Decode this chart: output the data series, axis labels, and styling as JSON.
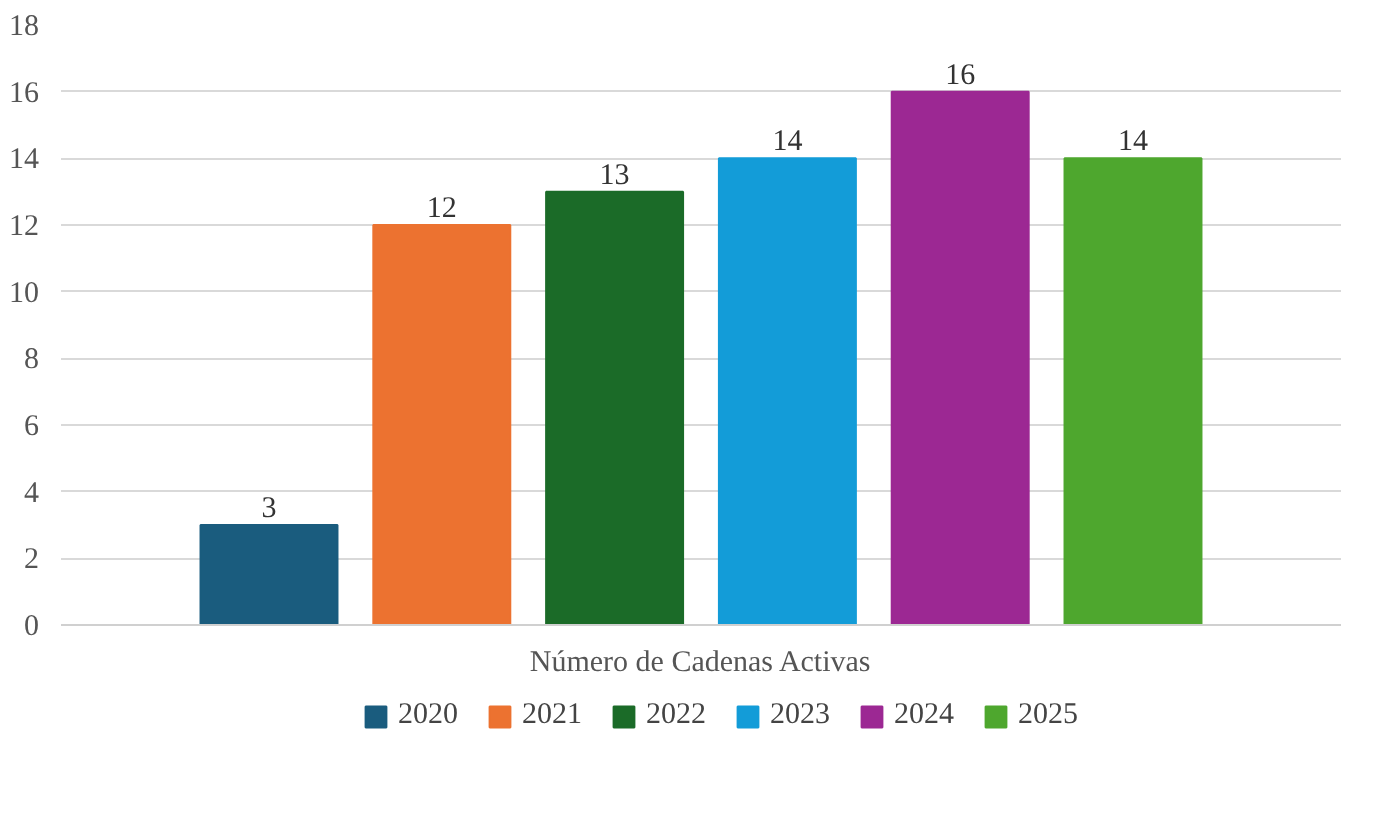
{
  "chart_data": {
    "type": "bar",
    "categories": [
      "Número de Cadenas Activas"
    ],
    "series": [
      {
        "name": "2020",
        "color": "#1a5c7e",
        "values": [
          3
        ]
      },
      {
        "name": "2021",
        "color": "#ec7230",
        "values": [
          12
        ]
      },
      {
        "name": "2022",
        "color": "#1b6b28",
        "values": [
          13
        ]
      },
      {
        "name": "2023",
        "color": "#139cd8",
        "values": [
          14
        ]
      },
      {
        "name": "2024",
        "color": "#9c2893",
        "values": [
          16
        ]
      },
      {
        "name": "2025",
        "color": "#4ea72e",
        "values": [
          14
        ]
      }
    ],
    "ylim": [
      0,
      18
    ],
    "yticks": [
      0,
      2,
      4,
      6,
      8,
      10,
      12,
      14,
      16,
      18
    ],
    "grid": "y",
    "legend": "bottom",
    "data_labels": true
  }
}
